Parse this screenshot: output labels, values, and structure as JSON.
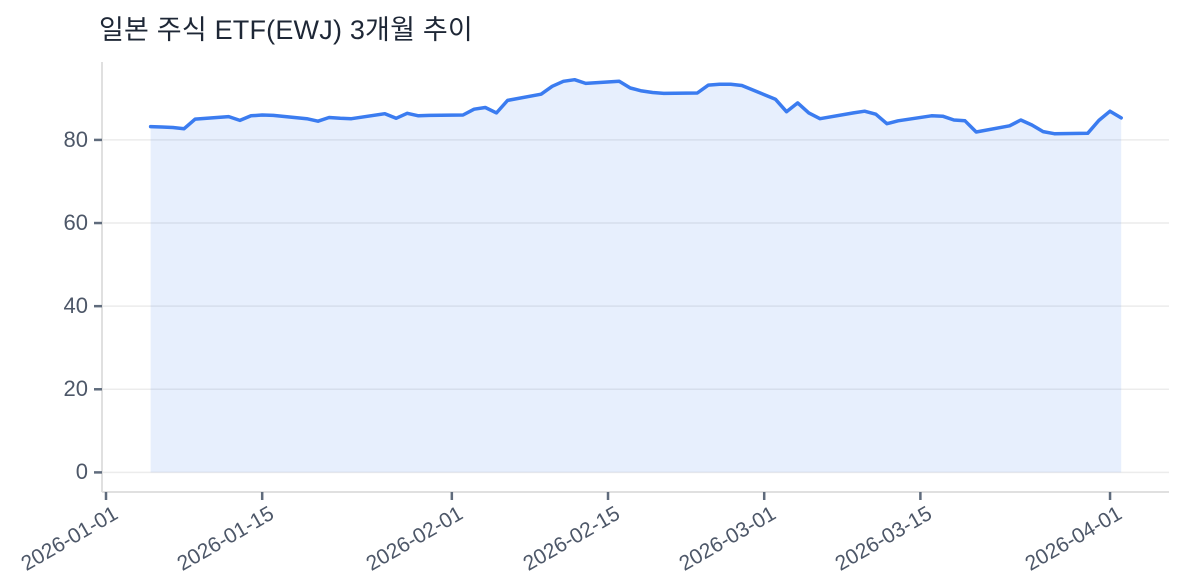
{
  "chart_data": {
    "type": "area",
    "title": "일본 주식 ETF(EWJ) 3개월 추이",
    "xlabel": "",
    "ylabel": "",
    "x_tick_labels": [
      "2026-01-01",
      "2026-01-15",
      "2026-02-01",
      "2026-02-15",
      "2026-03-01",
      "2026-03-15",
      "2026-04-01"
    ],
    "y_ticks": [
      0,
      20,
      40,
      60,
      80
    ],
    "y_range_shown": [
      0,
      95
    ],
    "grid": true,
    "legend": "none",
    "series": [
      {
        "name": "EWJ",
        "dates": [
          "2026-01-05",
          "2026-01-06",
          "2026-01-07",
          "2026-01-08",
          "2026-01-09",
          "2026-01-12",
          "2026-01-13",
          "2026-01-14",
          "2026-01-15",
          "2026-01-16",
          "2026-01-19",
          "2026-01-20",
          "2026-01-21",
          "2026-01-22",
          "2026-01-23",
          "2026-01-26",
          "2026-01-27",
          "2026-01-28",
          "2026-01-29",
          "2026-01-30",
          "2026-02-02",
          "2026-02-03",
          "2026-02-04",
          "2026-02-05",
          "2026-02-06",
          "2026-02-09",
          "2026-02-10",
          "2026-02-11",
          "2026-02-12",
          "2026-02-13",
          "2026-02-16",
          "2026-02-17",
          "2026-02-18",
          "2026-02-19",
          "2026-02-20",
          "2026-02-23",
          "2026-02-24",
          "2026-02-25",
          "2026-02-26",
          "2026-02-27",
          "2026-03-02",
          "2026-03-03",
          "2026-03-04",
          "2026-03-05",
          "2026-03-06",
          "2026-03-09",
          "2026-03-10",
          "2026-03-11",
          "2026-03-12",
          "2026-03-13",
          "2026-03-16",
          "2026-03-17",
          "2026-03-18",
          "2026-03-19",
          "2026-03-20",
          "2026-03-23",
          "2026-03-24",
          "2026-03-25",
          "2026-03-26",
          "2026-03-27",
          "2026-03-30",
          "2026-03-31",
          "2026-04-01",
          "2026-04-02"
        ],
        "values": [
          83.2,
          83.1,
          83.0,
          82.7,
          85.0,
          85.6,
          84.7,
          85.8,
          86.0,
          85.9,
          85.1,
          84.5,
          85.4,
          85.2,
          85.1,
          86.3,
          85.2,
          86.4,
          85.8,
          85.9,
          86.0,
          87.4,
          87.8,
          86.5,
          89.5,
          91.0,
          92.9,
          94.1,
          94.5,
          93.6,
          94.1,
          92.5,
          91.8,
          91.4,
          91.2,
          91.3,
          93.2,
          93.4,
          93.4,
          93.1,
          89.8,
          86.8,
          88.9,
          86.5,
          85.1,
          86.5,
          86.9,
          86.2,
          83.9,
          84.6,
          85.8,
          85.7,
          84.8,
          84.6,
          81.9,
          83.4,
          84.8,
          83.6,
          82.0,
          81.5,
          81.6,
          84.7,
          86.9,
          85.3
        ]
      }
    ],
    "colors": {
      "line": "#3b7cf0",
      "fill": "rgba(59,124,240,0.12)",
      "grid": "#ececec",
      "axis": "#e0e0e0",
      "tick": "#5f6b7c",
      "label": "#4d5768",
      "title": "#1e2736"
    }
  }
}
